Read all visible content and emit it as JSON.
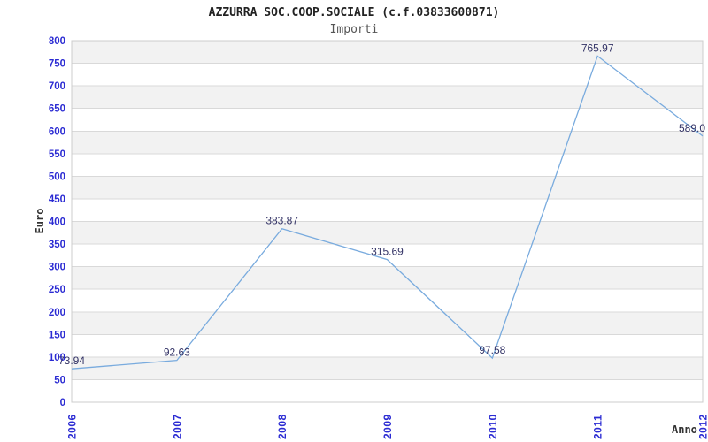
{
  "chart_data": {
    "type": "line",
    "title": "AZZURRA SOC.COOP.SOCIALE (c.f.03833600871)",
    "subtitle": "Importi",
    "xlabel": "Anno",
    "ylabel": "Euro",
    "x": [
      2006,
      2007,
      2008,
      2009,
      2010,
      2011,
      2012
    ],
    "values": [
      73.94,
      92.63,
      383.87,
      315.69,
      97.58,
      765.97,
      589.0
    ],
    "point_labels": [
      "73.94",
      "92.63",
      "383.87",
      "315.69",
      "97.58",
      "765.97",
      "589.0"
    ],
    "ylim": [
      0,
      800
    ],
    "ytick_step": 50,
    "grid": "horizontal-bands-alternating",
    "legend": "none",
    "markers": "none",
    "colors": {
      "line": "#79abde",
      "axis_tick_label": "#2b2bd3",
      "point_label": "#333366",
      "band_gray": "#f2f2f2",
      "band_white": "#ffffff",
      "grid_line": "#d9d9d9",
      "plot_border": "#cccccc",
      "title": "#222222",
      "subtitle": "#555555",
      "axis_title": "#333333",
      "background": "#ffffff"
    }
  }
}
